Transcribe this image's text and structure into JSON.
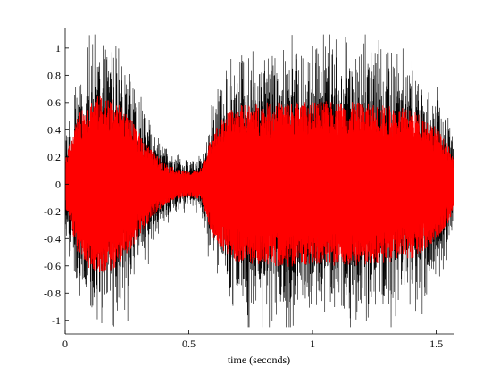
{
  "chart_data": {
    "type": "line",
    "title": "",
    "xlabel": "time (seconds)",
    "ylabel": "",
    "xlim": [
      0,
      1.57
    ],
    "ylim": [
      -1.1,
      1.15
    ],
    "grid": false,
    "legend": "none",
    "x_ticks": [
      0,
      0.5,
      1,
      1.5
    ],
    "x_tick_labels": [
      "0",
      "0.5",
      "1",
      "1.5"
    ],
    "y_ticks": [
      -1,
      -0.8,
      -0.6,
      -0.4,
      -0.2,
      0,
      0.2,
      0.4,
      0.6,
      0.8,
      1
    ],
    "y_tick_labels": [
      "-1",
      "-0.8",
      "-0.6",
      "-0.4",
      "-0.2",
      "0",
      "0.2",
      "0.4",
      "0.6",
      "0.8",
      "1"
    ],
    "series": [
      {
        "color": "#000000",
        "style": "dense noisy waveform",
        "envelope_t": [
          0,
          0.05,
          0.1,
          0.15,
          0.2,
          0.25,
          0.3,
          0.35,
          0.4,
          0.45,
          0.5,
          0.55,
          0.6,
          0.65,
          0.7,
          0.8,
          0.9,
          1.0,
          1.1,
          1.2,
          1.3,
          1.4,
          1.45,
          1.5,
          1.55,
          1.57
        ],
        "envelope_amp": [
          0.3,
          0.65,
          0.85,
          0.9,
          0.85,
          0.72,
          0.55,
          0.38,
          0.25,
          0.18,
          0.14,
          0.18,
          0.55,
          0.72,
          0.8,
          0.84,
          0.87,
          0.88,
          0.88,
          0.87,
          0.84,
          0.8,
          0.74,
          0.62,
          0.45,
          0.3
        ],
        "peak_min": -1.05,
        "peak_max": 1.1
      },
      {
        "color": "#ff0000",
        "style": "dense filtered waveform",
        "envelope_t": [
          0,
          0.05,
          0.1,
          0.15,
          0.2,
          0.25,
          0.3,
          0.35,
          0.4,
          0.45,
          0.5,
          0.55,
          0.6,
          0.65,
          0.7,
          0.8,
          0.9,
          1.0,
          1.1,
          1.2,
          1.3,
          1.4,
          1.45,
          1.5,
          1.55,
          1.57
        ],
        "envelope_amp": [
          0.18,
          0.5,
          0.63,
          0.66,
          0.62,
          0.52,
          0.38,
          0.25,
          0.16,
          0.11,
          0.09,
          0.12,
          0.4,
          0.52,
          0.58,
          0.6,
          0.61,
          0.61,
          0.61,
          0.6,
          0.58,
          0.55,
          0.5,
          0.42,
          0.28,
          0.18
        ]
      }
    ]
  }
}
